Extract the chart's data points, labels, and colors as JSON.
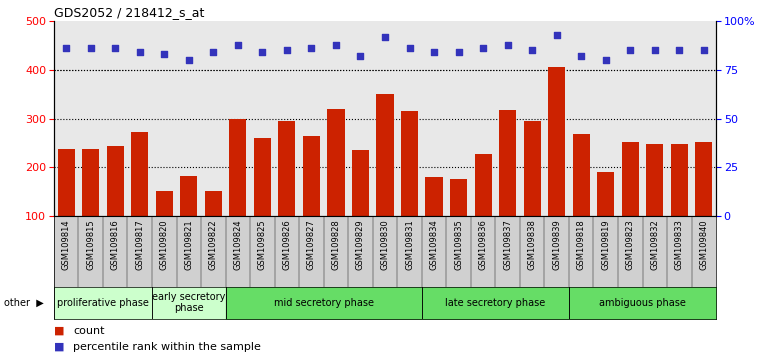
{
  "title": "GDS2052 / 218412_s_at",
  "samples": [
    "GSM109814",
    "GSM109815",
    "GSM109816",
    "GSM109817",
    "GSM109820",
    "GSM109821",
    "GSM109822",
    "GSM109824",
    "GSM109825",
    "GSM109826",
    "GSM109827",
    "GSM109828",
    "GSM109829",
    "GSM109830",
    "GSM109831",
    "GSM109834",
    "GSM109835",
    "GSM109836",
    "GSM109837",
    "GSM109838",
    "GSM109839",
    "GSM109818",
    "GSM109819",
    "GSM109823",
    "GSM109832",
    "GSM109833",
    "GSM109840"
  ],
  "counts": [
    238,
    238,
    244,
    272,
    152,
    182,
    152,
    300,
    260,
    295,
    265,
    320,
    235,
    350,
    315,
    180,
    175,
    228,
    318,
    295,
    405,
    268,
    190,
    252,
    248,
    248,
    252
  ],
  "percentiles": [
    86,
    86,
    86,
    84,
    83,
    80,
    84,
    88,
    84,
    85,
    86,
    88,
    82,
    92,
    86,
    84,
    84,
    86,
    88,
    85,
    93,
    82,
    80,
    85,
    85,
    85,
    85
  ],
  "bar_color": "#cc2200",
  "dot_color": "#3333bb",
  "ylim_left": [
    100,
    500
  ],
  "ylim_right": [
    0,
    100
  ],
  "yticks_left": [
    100,
    200,
    300,
    400,
    500
  ],
  "yticks_right": [
    0,
    25,
    50,
    75,
    100
  ],
  "grid_lines": [
    200,
    300,
    400
  ],
  "phases_def": [
    {
      "label": "proliferative phase",
      "start": 0,
      "end": 4,
      "color": "#ccffcc"
    },
    {
      "label": "early secretory\nphase",
      "start": 4,
      "end": 7,
      "color": "#ccffcc"
    },
    {
      "label": "mid secretory phase",
      "start": 7,
      "end": 15,
      "color": "#66dd66"
    },
    {
      "label": "late secretory phase",
      "start": 15,
      "end": 21,
      "color": "#66dd66"
    },
    {
      "label": "ambiguous phase",
      "start": 21,
      "end": 27,
      "color": "#66dd66"
    }
  ],
  "tick_bg_color": "#d0d0d0",
  "plot_bg_color": "#e8e8e8"
}
